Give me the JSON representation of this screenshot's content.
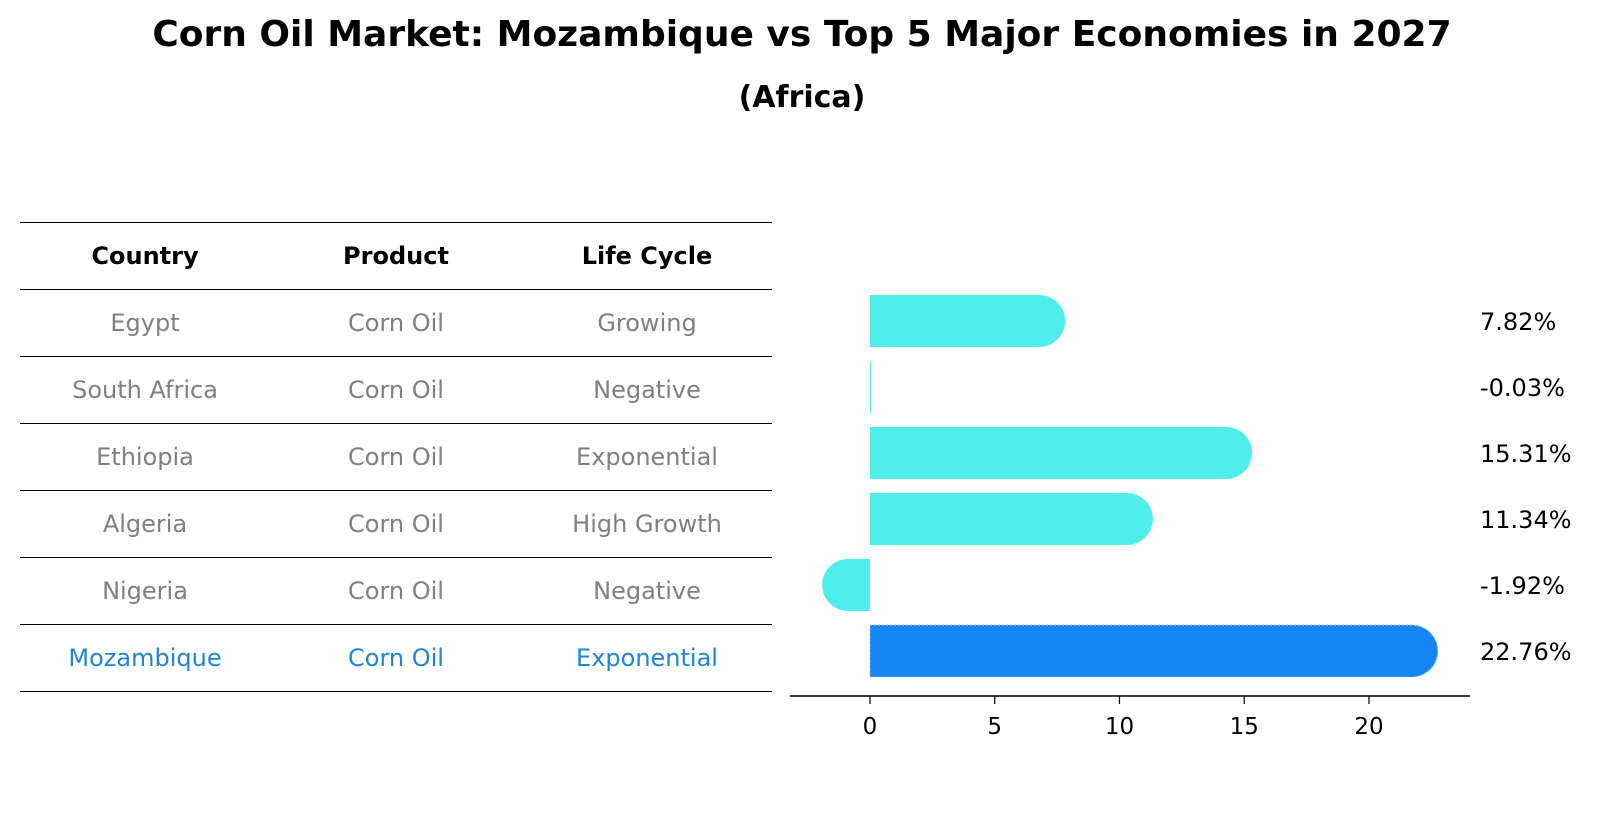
{
  "title": "Corn Oil Market: Mozambique vs Top 5 Major Economies in 2027",
  "subtitle": "(Africa)",
  "table": {
    "headers": [
      "Country",
      "Product",
      "Life Cycle"
    ],
    "rows": [
      [
        "Egypt",
        "Corn Oil",
        "Growing"
      ],
      [
        "South Africa",
        "Corn Oil",
        "Negative"
      ],
      [
        "Ethiopia",
        "Corn Oil",
        "Exponential"
      ],
      [
        "Algeria",
        "Corn Oil",
        "High Growth"
      ],
      [
        "Nigeria",
        "Corn Oil",
        "Negative"
      ],
      [
        "Mozambique",
        "Corn Oil",
        "Exponential"
      ]
    ],
    "highlight_row": 5
  },
  "colors": {
    "bar": "#4feeea",
    "highlight_bar": "#1685f4",
    "highlight_text": "#1f86d4"
  },
  "chart_data": {
    "type": "bar",
    "orientation": "horizontal",
    "categories": [
      "Egypt",
      "South Africa",
      "Ethiopia",
      "Algeria",
      "Nigeria",
      "Mozambique"
    ],
    "values": [
      7.82,
      -0.03,
      15.31,
      11.34,
      -1.92,
      22.76
    ],
    "value_labels": [
      "7.82%",
      "-0.03%",
      "15.31%",
      "11.34%",
      "-1.92%",
      "22.76%"
    ],
    "highlight": "Mozambique",
    "xlim": [
      -3.2,
      24
    ],
    "xticks": [
      0,
      5,
      10,
      15,
      20
    ],
    "xlabel": "",
    "ylabel": "",
    "grid": false
  }
}
